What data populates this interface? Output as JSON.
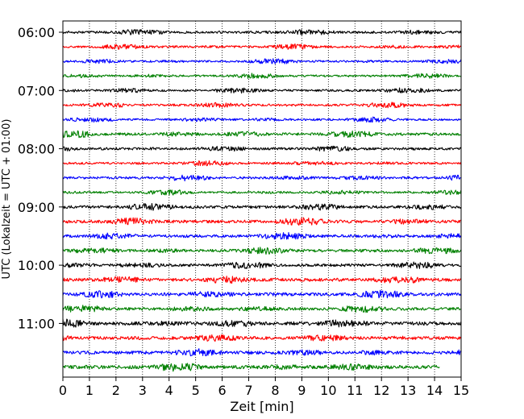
{
  "chart_data": {
    "type": "line",
    "title": "",
    "xlabel": "Zeit  [min]",
    "ylabel": "UTC (Lokalzeit = UTC + 01:00)",
    "xlim": [
      0,
      15
    ],
    "x_ticks": [
      "0",
      "1",
      "2",
      "3",
      "4",
      "5",
      "6",
      "7",
      "8",
      "9",
      "10",
      "11",
      "12",
      "13",
      "14",
      "15"
    ],
    "y_ticks": [
      "06:00",
      "07:00",
      "08:00",
      "09:00",
      "10:00",
      "11:00"
    ],
    "y_tick_rows": [
      0,
      4,
      8,
      12,
      16,
      20
    ],
    "grid": "vertical dotted",
    "trace_interval_minutes": 15,
    "start_time_utc": "06:00",
    "colors": [
      "#000000",
      "#ff0000",
      "#0000ff",
      "#008000"
    ],
    "last_trace_end_minute": 14.2,
    "series": [
      {
        "label": "06:00",
        "color": "#000000",
        "x_end": 15,
        "amplitude": 0.35
      },
      {
        "label": "06:15",
        "color": "#ff0000",
        "x_end": 15,
        "amplitude": 0.32
      },
      {
        "label": "06:30",
        "color": "#0000ff",
        "x_end": 15,
        "amplitude": 0.3
      },
      {
        "label": "06:45",
        "color": "#008000",
        "x_end": 15,
        "amplitude": 0.3
      },
      {
        "label": "07:00",
        "color": "#000000",
        "x_end": 15,
        "amplitude": 0.33
      },
      {
        "label": "07:15",
        "color": "#ff0000",
        "x_end": 15,
        "amplitude": 0.32
      },
      {
        "label": "07:30",
        "color": "#0000ff",
        "x_end": 15,
        "amplitude": 0.3
      },
      {
        "label": "07:45",
        "color": "#008000",
        "x_end": 15,
        "amplitude": 0.4
      },
      {
        "label": "08:00",
        "color": "#000000",
        "x_end": 15,
        "amplitude": 0.35
      },
      {
        "label": "08:15",
        "color": "#ff0000",
        "x_end": 15,
        "amplitude": 0.32
      },
      {
        "label": "08:30",
        "color": "#0000ff",
        "x_end": 15,
        "amplitude": 0.35
      },
      {
        "label": "08:45",
        "color": "#008000",
        "x_end": 15,
        "amplitude": 0.3
      },
      {
        "label": "09:00",
        "color": "#000000",
        "x_end": 15,
        "amplitude": 0.4
      },
      {
        "label": "09:15",
        "color": "#ff0000",
        "x_end": 15,
        "amplitude": 0.45
      },
      {
        "label": "09:30",
        "color": "#0000ff",
        "x_end": 15,
        "amplitude": 0.4
      },
      {
        "label": "09:45",
        "color": "#008000",
        "x_end": 15,
        "amplitude": 0.42
      },
      {
        "label": "10:00",
        "color": "#000000",
        "x_end": 15,
        "amplitude": 0.4
      },
      {
        "label": "10:15",
        "color": "#ff0000",
        "x_end": 15,
        "amplitude": 0.45
      },
      {
        "label": "10:30",
        "color": "#0000ff",
        "x_end": 15,
        "amplitude": 0.45
      },
      {
        "label": "10:45",
        "color": "#008000",
        "x_end": 15,
        "amplitude": 0.42
      },
      {
        "label": "11:00",
        "color": "#000000",
        "x_end": 15,
        "amplitude": 0.5
      },
      {
        "label": "11:15",
        "color": "#ff0000",
        "x_end": 15,
        "amplitude": 0.45
      },
      {
        "label": "11:30",
        "color": "#0000ff",
        "x_end": 15,
        "amplitude": 0.45
      },
      {
        "label": "11:45",
        "color": "#008000",
        "x_end": 14.2,
        "amplitude": 0.5
      }
    ]
  }
}
